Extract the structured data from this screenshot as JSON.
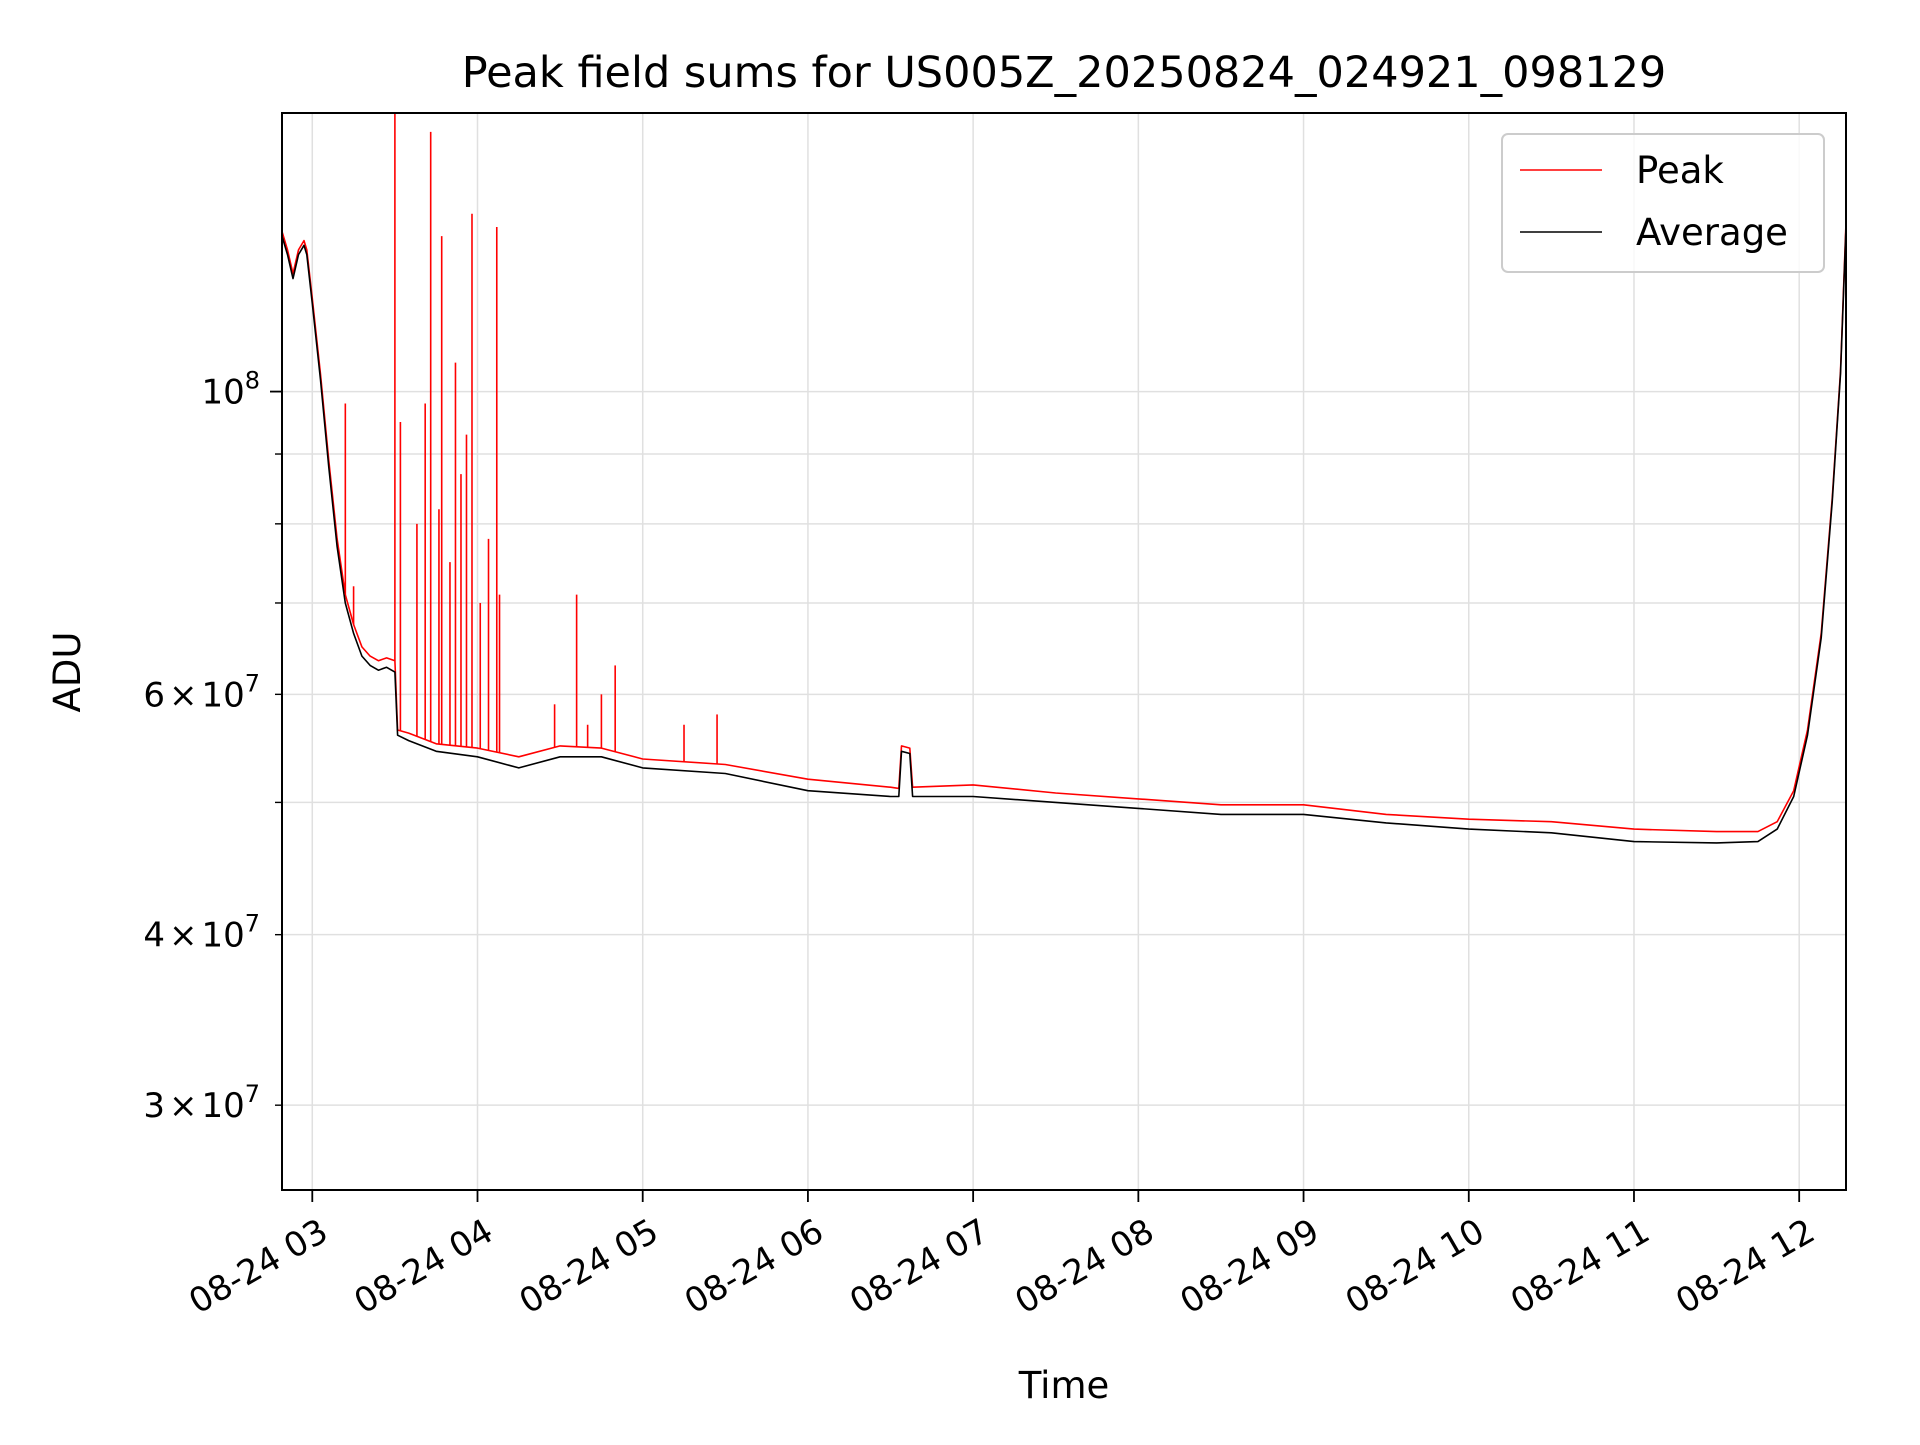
{
  "chart_data": {
    "type": "line",
    "title": "Peak field sums for US005Z_20250824_024921_098129",
    "xlabel": "Time",
    "ylabel": "ADU",
    "y_scale": "log",
    "grid": true,
    "legend_position": "top-right",
    "xlim": [
      "2025-08-24 02:49",
      "2025-08-24 12:17"
    ],
    "ylim": [
      26000000,
      160000000
    ],
    "x_ticks": [
      {
        "value": "2025-08-24 03:00",
        "label": "08-24 03"
      },
      {
        "value": "2025-08-24 04:00",
        "label": "08-24 04"
      },
      {
        "value": "2025-08-24 05:00",
        "label": "08-24 05"
      },
      {
        "value": "2025-08-24 06:00",
        "label": "08-24 06"
      },
      {
        "value": "2025-08-24 07:00",
        "label": "08-24 07"
      },
      {
        "value": "2025-08-24 08:00",
        "label": "08-24 08"
      },
      {
        "value": "2025-08-24 09:00",
        "label": "08-24 09"
      },
      {
        "value": "2025-08-24 10:00",
        "label": "08-24 10"
      },
      {
        "value": "2025-08-24 11:00",
        "label": "08-24 11"
      },
      {
        "value": "2025-08-24 12:00",
        "label": "08-24 12"
      }
    ],
    "y_major_ticks": [
      {
        "value": 100000000,
        "base": "10",
        "exp": "8"
      }
    ],
    "y_minor_ticks": [
      {
        "value": 30000000,
        "mant": "3",
        "times": "×",
        "base": "10",
        "exp": "7"
      },
      {
        "value": 40000000,
        "mant": "4",
        "times": "×",
        "base": "10",
        "exp": "7"
      },
      {
        "value": 60000000,
        "mant": "6",
        "times": "×",
        "base": "10",
        "exp": "7"
      }
    ],
    "y_minor_grid": [
      30000000,
      40000000,
      50000000,
      60000000,
      70000000,
      80000000,
      90000000
    ],
    "series": [
      {
        "name": "Average",
        "color": "#000000",
        "x": [
          "2025-08-24 02:49",
          "2025-08-24 02:51",
          "2025-08-24 02:53",
          "2025-08-24 02:55",
          "2025-08-24 02:57",
          "2025-08-24 02:58",
          "2025-08-24 03:00",
          "2025-08-24 03:03",
          "2025-08-24 03:06",
          "2025-08-24 03:09",
          "2025-08-24 03:12",
          "2025-08-24 03:15",
          "2025-08-24 03:18",
          "2025-08-24 03:21",
          "2025-08-24 03:24",
          "2025-08-24 03:27",
          "2025-08-24 03:30",
          "2025-08-24 03:31",
          "2025-08-24 03:35",
          "2025-08-24 03:45",
          "2025-08-24 04:00",
          "2025-08-24 04:15",
          "2025-08-24 04:30",
          "2025-08-24 04:45",
          "2025-08-24 05:00",
          "2025-08-24 05:30",
          "2025-08-24 06:00",
          "2025-08-24 06:30",
          "2025-08-24 06:33",
          "2025-08-24 06:34",
          "2025-08-24 06:37",
          "2025-08-24 06:38",
          "2025-08-24 07:00",
          "2025-08-24 07:30",
          "2025-08-24 08:00",
          "2025-08-24 08:30",
          "2025-08-24 09:00",
          "2025-08-24 09:30",
          "2025-08-24 10:00",
          "2025-08-24 10:30",
          "2025-08-24 11:00",
          "2025-08-24 11:30",
          "2025-08-24 11:45",
          "2025-08-24 11:52",
          "2025-08-24 11:58",
          "2025-08-24 12:03",
          "2025-08-24 12:08",
          "2025-08-24 12:12",
          "2025-08-24 12:15",
          "2025-08-24 12:17"
        ],
        "values": [
          130000000,
          126000000,
          121000000,
          126000000,
          128000000,
          126000000,
          116000000,
          102000000,
          88000000,
          77000000,
          70000000,
          66500000,
          64000000,
          63000000,
          62500000,
          62800000,
          62300000,
          56000000,
          55500000,
          54500000,
          54000000,
          53000000,
          54000000,
          54000000,
          53000000,
          52500000,
          51000000,
          50500000,
          50500000,
          54500000,
          54300000,
          50500000,
          50500000,
          50000000,
          49500000,
          49000000,
          49000000,
          48300000,
          47800000,
          47500000,
          46800000,
          46700000,
          46800000,
          47800000,
          50500000,
          56000000,
          66000000,
          83000000,
          103000000,
          132000000
        ]
      },
      {
        "name": "Peak",
        "color": "#ff0000",
        "x": [
          "2025-08-24 02:49",
          "2025-08-24 02:51",
          "2025-08-24 02:53",
          "2025-08-24 02:55",
          "2025-08-24 02:57",
          "2025-08-24 02:58",
          "2025-08-24 03:00",
          "2025-08-24 03:03",
          "2025-08-24 03:06",
          "2025-08-24 03:09",
          "2025-08-24 03:12",
          "2025-08-24 03:15",
          "2025-08-24 03:18",
          "2025-08-24 03:21",
          "2025-08-24 03:24",
          "2025-08-24 03:27",
          "2025-08-24 03:30",
          "2025-08-24 03:31",
          "2025-08-24 03:35",
          "2025-08-24 03:45",
          "2025-08-24 04:00",
          "2025-08-24 04:15",
          "2025-08-24 04:30",
          "2025-08-24 04:45",
          "2025-08-24 05:00",
          "2025-08-24 05:30",
          "2025-08-24 06:00",
          "2025-08-24 06:30",
          "2025-08-24 06:33",
          "2025-08-24 06:34",
          "2025-08-24 06:37",
          "2025-08-24 06:38",
          "2025-08-24 07:00",
          "2025-08-24 07:30",
          "2025-08-24 08:00",
          "2025-08-24 08:30",
          "2025-08-24 09:00",
          "2025-08-24 09:30",
          "2025-08-24 10:00",
          "2025-08-24 10:30",
          "2025-08-24 11:00",
          "2025-08-24 11:30",
          "2025-08-24 11:45",
          "2025-08-24 11:52",
          "2025-08-24 11:58",
          "2025-08-24 12:03",
          "2025-08-24 12:08",
          "2025-08-24 12:12",
          "2025-08-24 12:15",
          "2025-08-24 12:17"
        ],
        "values": [
          131000000,
          127000000,
          122000000,
          127000000,
          129000000,
          127000000,
          117000000,
          103000000,
          89000000,
          78000000,
          71000000,
          67500000,
          65000000,
          64000000,
          63500000,
          63800000,
          63500000,
          56500000,
          56200000,
          55200000,
          54800000,
          54000000,
          55000000,
          54800000,
          53800000,
          53300000,
          52000000,
          51300000,
          51200000,
          55000000,
          54800000,
          51300000,
          51500000,
          50800000,
          50300000,
          49800000,
          49800000,
          49000000,
          48600000,
          48400000,
          47800000,
          47600000,
          47600000,
          48400000,
          51000000,
          56500000,
          66500000,
          83500000,
          103500000,
          133000000
        ]
      }
    ],
    "peak_spikes": [
      {
        "x": "2025-08-24 03:12",
        "y": 98000000
      },
      {
        "x": "2025-08-24 03:15",
        "y": 72000000
      },
      {
        "x": "2025-08-24 03:30",
        "y": 160000000
      },
      {
        "x": "2025-08-24 03:32",
        "y": 95000000
      },
      {
        "x": "2025-08-24 03:38",
        "y": 80000000
      },
      {
        "x": "2025-08-24 03:41",
        "y": 98000000
      },
      {
        "x": "2025-08-24 03:43",
        "y": 155000000
      },
      {
        "x": "2025-08-24 03:46",
        "y": 82000000
      },
      {
        "x": "2025-08-24 03:47",
        "y": 130000000
      },
      {
        "x": "2025-08-24 03:50",
        "y": 75000000
      },
      {
        "x": "2025-08-24 03:52",
        "y": 105000000
      },
      {
        "x": "2025-08-24 03:54",
        "y": 87000000
      },
      {
        "x": "2025-08-24 03:56",
        "y": 93000000
      },
      {
        "x": "2025-08-24 03:58",
        "y": 135000000
      },
      {
        "x": "2025-08-24 04:01",
        "y": 70000000
      },
      {
        "x": "2025-08-24 04:04",
        "y": 78000000
      },
      {
        "x": "2025-08-24 04:07",
        "y": 132000000
      },
      {
        "x": "2025-08-24 04:08",
        "y": 71000000
      },
      {
        "x": "2025-08-24 04:28",
        "y": 59000000
      },
      {
        "x": "2025-08-24 04:36",
        "y": 71000000
      },
      {
        "x": "2025-08-24 04:40",
        "y": 57000000
      },
      {
        "x": "2025-08-24 04:45",
        "y": 60000000
      },
      {
        "x": "2025-08-24 04:50",
        "y": 63000000
      },
      {
        "x": "2025-08-24 05:15",
        "y": 57000000
      },
      {
        "x": "2025-08-24 05:27",
        "y": 58000000
      }
    ],
    "legend": [
      {
        "label": "Peak",
        "color": "#ff0000"
      },
      {
        "label": "Average",
        "color": "#000000"
      }
    ]
  }
}
